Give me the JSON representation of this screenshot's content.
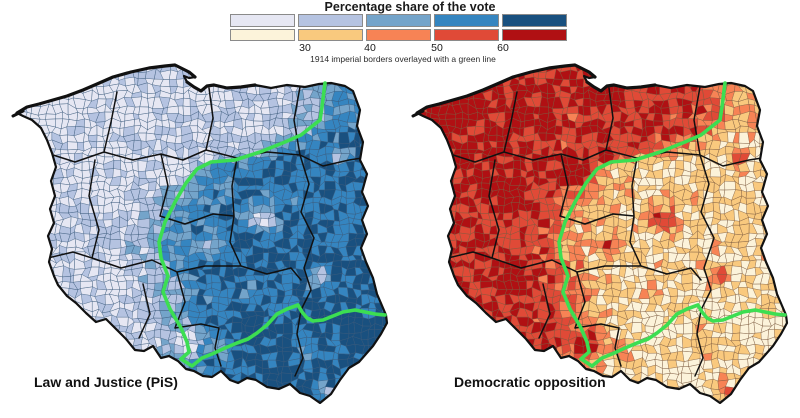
{
  "legend": {
    "title": "Percentage share of the vote",
    "ticks": [
      "30",
      "40",
      "50",
      "60"
    ],
    "note": "1914 imperial borders overlayed with a green line",
    "pis_colors": [
      "#e6e7f3",
      "#b5c3e1",
      "#74a4ca",
      "#3585c0",
      "#19507f"
    ],
    "opp_colors": [
      "#fcf3da",
      "#f9c97e",
      "#f78355",
      "#e04a37",
      "#b01013"
    ]
  },
  "maps": {
    "left": {
      "label": "Law and Justice (PiS)",
      "high_vote_region": "east"
    },
    "right": {
      "label": "Democratic opposition",
      "high_vote_region": "west"
    }
  },
  "overlay": {
    "green_border_color": "#3cde52",
    "country_outline_color": "#111111",
    "meaning": "1914 imperial borders"
  }
}
